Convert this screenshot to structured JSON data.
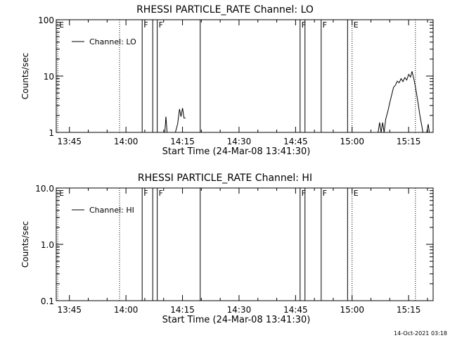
{
  "footer_stamp": "14-Oct-2021 03:18",
  "chart_data": [
    {
      "type": "line",
      "title": "RHESSI PARTICLE_RATE Channel: LO",
      "xlabel": "Start Time (24-Mar-08 13:41:30)",
      "ylabel": "Counts/sec",
      "x_unit": "minutes since 13:41:30",
      "xlim": [
        0,
        100
      ],
      "x_ticks": [
        {
          "x": 3.5,
          "label": "13:45"
        },
        {
          "x": 18.5,
          "label": "14:00"
        },
        {
          "x": 33.5,
          "label": "14:15"
        },
        {
          "x": 48.5,
          "label": "14:30"
        },
        {
          "x": 63.5,
          "label": "14:45"
        },
        {
          "x": 78.5,
          "label": "15:00"
        },
        {
          "x": 93.5,
          "label": "15:15"
        }
      ],
      "y_scale": "log",
      "ylim": [
        1,
        100
      ],
      "y_ticks": [
        {
          "y": 1,
          "label": "1"
        },
        {
          "y": 10,
          "label": "10"
        },
        {
          "y": 100,
          "label": "100"
        }
      ],
      "legend": {
        "position": "top-left",
        "entries": [
          "Channel: LO"
        ]
      },
      "series": [
        {
          "name": "Channel: LO",
          "segments": [
            [
              [
                28.8,
                1.0
              ],
              [
                29.1,
                1.9
              ],
              [
                29.4,
                1.0
              ]
            ],
            [
              [
                31.6,
                1.0
              ],
              [
                32.2,
                1.4
              ],
              [
                32.7,
                2.6
              ],
              [
                33.1,
                1.9
              ],
              [
                33.5,
                2.7
              ],
              [
                33.9,
                1.8
              ],
              [
                34.3,
                1.8
              ]
            ],
            [
              [
                85.4,
                1.0
              ],
              [
                85.8,
                1.5
              ],
              [
                86.2,
                1.0
              ],
              [
                86.6,
                1.5
              ],
              [
                87.0,
                1.0
              ],
              [
                87.4,
                1.7
              ],
              [
                88.0,
                2.4
              ],
              [
                88.5,
                3.4
              ],
              [
                89.0,
                4.6
              ],
              [
                89.5,
                6.3
              ],
              [
                90.0,
                6.9
              ],
              [
                90.5,
                8.1
              ],
              [
                91.0,
                7.6
              ],
              [
                91.5,
                9.0
              ],
              [
                92.0,
                8.0
              ],
              [
                92.5,
                9.4
              ],
              [
                93.0,
                8.5
              ],
              [
                93.5,
                10.7
              ],
              [
                94.0,
                9.6
              ],
              [
                94.4,
                12.1
              ],
              [
                95.0,
                8.2
              ],
              [
                95.5,
                5.4
              ],
              [
                96.0,
                3.3
              ],
              [
                96.5,
                2.0
              ],
              [
                97.0,
                1.3
              ],
              [
                97.3,
                1.0
              ]
            ],
            [
              [
                98.3,
                1.0
              ],
              [
                98.7,
                1.4
              ],
              [
                99.0,
                1.0
              ]
            ]
          ]
        }
      ],
      "markers": [
        {
          "x": 0.4,
          "style": "dotted",
          "label": "E"
        },
        {
          "x": 16.8,
          "style": "dotted",
          "label": ""
        },
        {
          "x": 22.8,
          "style": "solid",
          "label": "F"
        },
        {
          "x": 25.6,
          "style": "solid",
          "label": ""
        },
        {
          "x": 26.8,
          "style": "solid",
          "label": "F"
        },
        {
          "x": 38.2,
          "style": "solid",
          "label": ""
        },
        {
          "x": 64.7,
          "style": "solid",
          "label": "F"
        },
        {
          "x": 66.0,
          "style": "solid",
          "label": ""
        },
        {
          "x": 70.3,
          "style": "solid",
          "label": "F"
        },
        {
          "x": 77.3,
          "style": "solid",
          "label": ""
        },
        {
          "x": 78.5,
          "style": "dotted",
          "label": "E"
        },
        {
          "x": 95.3,
          "style": "dotted",
          "label": ""
        }
      ]
    },
    {
      "type": "line",
      "title": "RHESSI PARTICLE_RATE Channel: HI",
      "xlabel": "Start Time (24-Mar-08 13:41:30)",
      "ylabel": "Counts/sec",
      "x_unit": "minutes since 13:41:30",
      "xlim": [
        0,
        100
      ],
      "x_ticks": [
        {
          "x": 3.5,
          "label": "13:45"
        },
        {
          "x": 18.5,
          "label": "14:00"
        },
        {
          "x": 33.5,
          "label": "14:15"
        },
        {
          "x": 48.5,
          "label": "14:30"
        },
        {
          "x": 63.5,
          "label": "14:45"
        },
        {
          "x": 78.5,
          "label": "15:00"
        },
        {
          "x": 93.5,
          "label": "15:15"
        }
      ],
      "y_scale": "log",
      "ylim": [
        0.1,
        10
      ],
      "y_ticks": [
        {
          "y": 0.1,
          "label": "0.1"
        },
        {
          "y": 1,
          "label": "1.0"
        },
        {
          "y": 10,
          "label": "10.0"
        }
      ],
      "legend": {
        "position": "top-left",
        "entries": [
          "Channel: HI"
        ]
      },
      "series": [
        {
          "name": "Channel: HI",
          "segments": []
        }
      ],
      "markers": [
        {
          "x": 0.4,
          "style": "dotted",
          "label": "E"
        },
        {
          "x": 16.8,
          "style": "dotted",
          "label": ""
        },
        {
          "x": 22.8,
          "style": "solid",
          "label": "F"
        },
        {
          "x": 25.6,
          "style": "solid",
          "label": ""
        },
        {
          "x": 26.8,
          "style": "solid",
          "label": "F"
        },
        {
          "x": 38.2,
          "style": "solid",
          "label": ""
        },
        {
          "x": 64.7,
          "style": "solid",
          "label": "F"
        },
        {
          "x": 66.0,
          "style": "solid",
          "label": ""
        },
        {
          "x": 70.3,
          "style": "solid",
          "label": "F"
        },
        {
          "x": 77.3,
          "style": "solid",
          "label": ""
        },
        {
          "x": 78.5,
          "style": "dotted",
          "label": "E"
        },
        {
          "x": 95.3,
          "style": "dotted",
          "label": ""
        }
      ]
    }
  ]
}
